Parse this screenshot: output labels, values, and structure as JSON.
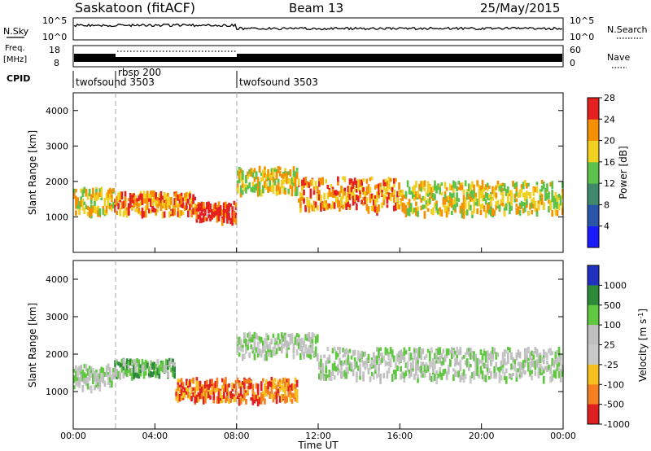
{
  "header": {
    "radar": "Saskatoon (fitACF)",
    "beam": "Beam 13",
    "date": "25/May/2015"
  },
  "status_panels": {
    "nsky_label": "N.Sky",
    "nsearch_label": "N.Search",
    "nsky_ticks": [
      "10^5",
      "10^0"
    ],
    "freq_label_line1": "Freq.",
    "freq_label_line2": "[MHz]",
    "freq_ticks": [
      "18",
      "8"
    ],
    "nave_label": "Nave",
    "nave_ticks": [
      "60",
      "0"
    ],
    "cpid_label": "CPID",
    "cpid_entries": [
      {
        "name": "twofsound 3503",
        "start_hour": 0
      },
      {
        "name": "rbsp 200",
        "start_hour": 2
      },
      {
        "name": "twofsound 3503",
        "start_hour": 8
      }
    ]
  },
  "chart_data": [
    {
      "type": "heatmap",
      "title": "Power",
      "ylabel": "Slant Range [km]",
      "xlabel": "",
      "ylim": [
        0,
        4500
      ],
      "yticks": [
        "1000",
        "2000",
        "3000",
        "4000"
      ],
      "xlim_hours": [
        0,
        24
      ],
      "colorbar_label": "Power [dB]",
      "colorbar_ticks": [
        "4",
        "8",
        "12",
        "16",
        "20",
        "24",
        "28"
      ],
      "colors": [
        "#1a1aff",
        "#2a55a8",
        "#3f8a6a",
        "#5cc24a",
        "#f0d020",
        "#f59000",
        "#e62020"
      ],
      "echo_bands": [
        {
          "t_start": 0,
          "t_end": 2,
          "r_center": 1500,
          "r_width": 700,
          "level": 4
        },
        {
          "t_start": 2,
          "t_end": 6,
          "r_center": 1450,
          "r_width": 600,
          "level": 5
        },
        {
          "t_start": 6,
          "t_end": 8,
          "r_center": 1200,
          "r_width": 500,
          "level": 6
        },
        {
          "t_start": 8,
          "t_end": 11,
          "r_center": 2100,
          "r_width": 700,
          "level": 4
        },
        {
          "t_start": 11,
          "t_end": 16,
          "r_center": 1700,
          "r_width": 900,
          "level": 5
        },
        {
          "t_start": 16,
          "t_end": 24,
          "r_center": 1600,
          "r_width": 900,
          "level": 4
        }
      ]
    },
    {
      "type": "heatmap",
      "title": "Velocity",
      "ylabel": "Slant Range [km]",
      "xlabel": "Time UT",
      "ylim": [
        0,
        4500
      ],
      "yticks": [
        "1000",
        "2000",
        "3000",
        "4000"
      ],
      "xlim_hours": [
        0,
        24
      ],
      "xticks": [
        "00:00",
        "04:00",
        "08:00",
        "12:00",
        "16:00",
        "20:00",
        "00:00"
      ],
      "colorbar_label": "Velocity [m s",
      "colorbar_label_sup": "-1",
      "colorbar_label_end": "]",
      "colorbar_ticks": [
        "1000",
        "500",
        "100",
        "25",
        "-25",
        "-100",
        "-500",
        "-1000"
      ],
      "colors": [
        "#2030c0",
        "#2e8a3a",
        "#60c840",
        "#bfbfbf",
        "#c8c8c8",
        "#f5c020",
        "#f58020",
        "#e02020"
      ],
      "echo_bands": [
        {
          "t_start": 0,
          "t_end": 2,
          "r_center": 1450,
          "r_width": 600,
          "level": 3
        },
        {
          "t_start": 2,
          "t_end": 5,
          "r_center": 1700,
          "r_width": 400,
          "level": 2
        },
        {
          "t_start": 5,
          "t_end": 11,
          "r_center": 1100,
          "r_width": 600,
          "level": 6
        },
        {
          "t_start": 8,
          "t_end": 12,
          "r_center": 2300,
          "r_width": 600,
          "level": 3
        },
        {
          "t_start": 12,
          "t_end": 24,
          "r_center": 1800,
          "r_width": 800,
          "level": 3
        }
      ]
    }
  ]
}
